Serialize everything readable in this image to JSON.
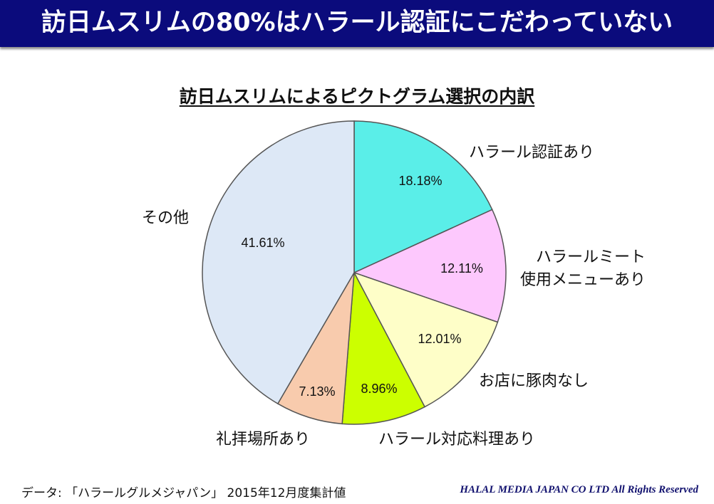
{
  "header": {
    "title": "訪日ムスリムの80%はハラール認証にこだわっていない"
  },
  "chart_data": {
    "type": "pie",
    "title": "訪日ムスリムによるピクトグラム選択の内訳",
    "slices": [
      {
        "label": "ハラール認証あり",
        "value": 18.18,
        "value_label": "18.18%",
        "color": "#5aeee8"
      },
      {
        "label": "ハラールミート\n使用メニューあり",
        "value": 12.11,
        "value_label": "12.11%",
        "color": "#fdc8fd"
      },
      {
        "label": "お店に豚肉なし",
        "value": 12.01,
        "value_label": "12.01%",
        "color": "#fefec8"
      },
      {
        "label": "ハラール対応料理あり",
        "value": 8.96,
        "value_label": "8.96%",
        "color": "#ccff00"
      },
      {
        "label": "礼拝場所あり",
        "value": 7.13,
        "value_label": "7.13%",
        "color": "#f8cbad"
      },
      {
        "label": "その他",
        "value": 41.61,
        "value_label": "41.61%",
        "color": "#dde8f6"
      }
    ]
  },
  "footer": {
    "source": "データ: 「ハラールグルメジャパン」 2015年12月度集計値",
    "copyright": "HALAL MEDIA JAPAN CO LTD All Rights Reserved"
  },
  "colors": {
    "banner": "#0b0b7c",
    "banner_text": "#ffffff",
    "outline": "#555555"
  }
}
